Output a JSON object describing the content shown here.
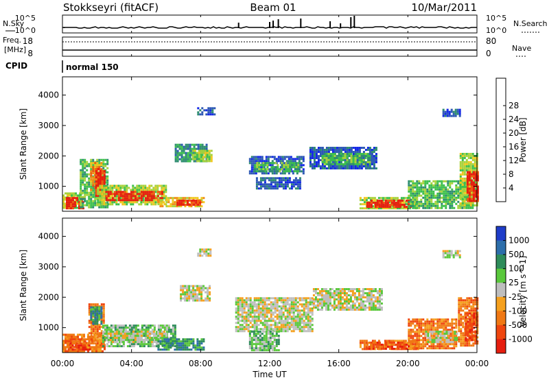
{
  "header": {
    "station": "Stokkseyri (fitACF)",
    "beam": "Beam 01",
    "date": "10/Mar/2011"
  },
  "noise_panel": {
    "left_label": "N.Sky",
    "right_label": "N.Search",
    "left_ticks": [
      "10^5",
      "10^0"
    ],
    "right_ticks": [
      "10^5",
      "10^0"
    ]
  },
  "freq_panel": {
    "left_label_1": "Freq.",
    "left_label_2": "[MHz]",
    "right_label": "Nave",
    "left_ticks": [
      "18",
      "8"
    ],
    "right_ticks": [
      "80",
      "0"
    ]
  },
  "cpid": {
    "label": "CPID",
    "mode": "normal 150"
  },
  "axes": {
    "ylabel": "Slant Range [km]",
    "xlabel": "Time UT",
    "yticks": [
      "1000",
      "2000",
      "3000",
      "4000"
    ],
    "xticks": [
      "00:00",
      "04:00",
      "08:00",
      "12:00",
      "16:00",
      "20:00",
      "00:00"
    ]
  },
  "colorbars": {
    "power": {
      "label": "Power [dB]",
      "ticks": [
        "4",
        "8",
        "12",
        "16",
        "20",
        "24",
        "28"
      ],
      "colors": [
        "#1428e6",
        "#2d58b4",
        "#2e8c70",
        "#3cbf4c",
        "#a7d23c",
        "#f0c81e",
        "#f08c14",
        "#ef5a0f",
        "#e61e0f"
      ]
    },
    "velocity": {
      "label": "Velocity [m s^-1]",
      "ticks": [
        "1000",
        "500",
        "100",
        "25",
        "-25",
        "-100",
        "-500",
        "-1000"
      ],
      "colors": [
        "#1e3cc8",
        "#2d6eaa",
        "#2e8c5a",
        "#5ac83c",
        "#bebebe",
        "#f5a01e",
        "#f07814",
        "#ef460f",
        "#e61e0f"
      ]
    }
  },
  "chart_data": [
    {
      "type": "heatmap",
      "name": "power",
      "x_unit": "hours UT",
      "y_unit": "km",
      "xlim": [
        0,
        24
      ],
      "ylim": [
        180,
        4600
      ],
      "regions": [
        {
          "t0": 0.0,
          "t1": 1.1,
          "r0": 300,
          "r1": 800,
          "level": 4
        },
        {
          "t0": 0.2,
          "t1": 1.2,
          "r0": 300,
          "r1": 650,
          "level": 8
        },
        {
          "t0": 1.0,
          "t1": 2.6,
          "r0": 300,
          "r1": 1900,
          "level": 3
        },
        {
          "t0": 1.6,
          "t1": 2.2,
          "r0": 900,
          "r1": 1800,
          "level": 6
        },
        {
          "t0": 1.9,
          "t1": 2.4,
          "r0": 700,
          "r1": 1600,
          "level": 8
        },
        {
          "t0": 2.0,
          "t1": 6.0,
          "r0": 400,
          "r1": 1050,
          "level": 4
        },
        {
          "t0": 2.5,
          "t1": 5.8,
          "r0": 550,
          "r1": 850,
          "level": 8
        },
        {
          "t0": 5.5,
          "t1": 8.2,
          "r0": 350,
          "r1": 650,
          "level": 5
        },
        {
          "t0": 6.6,
          "t1": 8.0,
          "r0": 380,
          "r1": 560,
          "level": 8
        },
        {
          "t0": 6.5,
          "t1": 8.3,
          "r0": 1800,
          "r1": 2400,
          "level": 2
        },
        {
          "t0": 7.5,
          "t1": 8.6,
          "r0": 1850,
          "r1": 2200,
          "level": 4
        },
        {
          "t0": 7.8,
          "t1": 8.8,
          "r0": 3350,
          "r1": 3600,
          "level": 1
        },
        {
          "t0": 10.8,
          "t1": 13.9,
          "r0": 1400,
          "r1": 2000,
          "level": 1
        },
        {
          "t0": 11.1,
          "t1": 13.7,
          "r0": 1500,
          "r1": 1800,
          "level": 3
        },
        {
          "t0": 11.2,
          "t1": 13.8,
          "r0": 950,
          "r1": 1300,
          "level": 1
        },
        {
          "t0": 14.3,
          "t1": 18.2,
          "r0": 1600,
          "r1": 2300,
          "level": 1
        },
        {
          "t0": 15.0,
          "t1": 17.8,
          "r0": 1750,
          "r1": 2100,
          "level": 3
        },
        {
          "t0": 17.2,
          "t1": 20.5,
          "r0": 300,
          "r1": 650,
          "level": 4
        },
        {
          "t0": 17.6,
          "t1": 20.2,
          "r0": 320,
          "r1": 560,
          "level": 8
        },
        {
          "t0": 20.0,
          "t1": 23.8,
          "r0": 300,
          "r1": 1200,
          "level": 3
        },
        {
          "t0": 22.0,
          "t1": 23.0,
          "r0": 3300,
          "r1": 3550,
          "level": 1
        },
        {
          "t0": 23.0,
          "t1": 24.0,
          "r0": 400,
          "r1": 2100,
          "level": 4
        },
        {
          "t0": 23.4,
          "t1": 24.0,
          "r0": 500,
          "r1": 1500,
          "level": 8
        }
      ]
    },
    {
      "type": "heatmap",
      "name": "velocity",
      "x_unit": "hours UT",
      "y_unit": "km",
      "xlim": [
        0,
        24
      ],
      "ylim": [
        180,
        4600
      ],
      "regions": [
        {
          "t0": 0.0,
          "t1": 2.5,
          "r0": 250,
          "r1": 800,
          "level": 6
        },
        {
          "t0": 0.3,
          "t1": 1.5,
          "r0": 300,
          "r1": 650,
          "level": 7
        },
        {
          "t0": 1.5,
          "t1": 2.4,
          "r0": 500,
          "r1": 1800,
          "level": 6
        },
        {
          "t0": 1.6,
          "t1": 2.2,
          "r0": 1100,
          "r1": 1700,
          "level": 2
        },
        {
          "t0": 2.3,
          "t1": 6.5,
          "r0": 400,
          "r1": 1100,
          "level": 3
        },
        {
          "t0": 2.5,
          "t1": 6.0,
          "r0": 550,
          "r1": 900,
          "level": 4
        },
        {
          "t0": 5.5,
          "t1": 8.2,
          "r0": 300,
          "r1": 650,
          "level": 2
        },
        {
          "t0": 6.8,
          "t1": 8.5,
          "r0": 1900,
          "r1": 2400,
          "level": 4
        },
        {
          "t0": 7.8,
          "t1": 8.6,
          "r0": 3350,
          "r1": 3600,
          "level": 4
        },
        {
          "t0": 10.0,
          "t1": 14.5,
          "r0": 900,
          "r1": 2000,
          "level": 4
        },
        {
          "t0": 10.8,
          "t1": 12.5,
          "r0": 250,
          "r1": 900,
          "level": 3
        },
        {
          "t0": 14.5,
          "t1": 18.5,
          "r0": 1600,
          "r1": 2300,
          "level": 4
        },
        {
          "t0": 17.2,
          "t1": 20.6,
          "r0": 280,
          "r1": 600,
          "level": 6
        },
        {
          "t0": 17.6,
          "t1": 20.2,
          "r0": 320,
          "r1": 540,
          "level": 7
        },
        {
          "t0": 20.0,
          "t1": 22.8,
          "r0": 300,
          "r1": 1300,
          "level": 6
        },
        {
          "t0": 21.0,
          "t1": 22.8,
          "r0": 500,
          "r1": 900,
          "level": 4
        },
        {
          "t0": 22.0,
          "t1": 23.0,
          "r0": 3300,
          "r1": 3550,
          "level": 4
        },
        {
          "t0": 22.9,
          "t1": 24.0,
          "r0": 400,
          "r1": 2000,
          "level": 6
        },
        {
          "t0": 23.3,
          "t1": 24.0,
          "r0": 600,
          "r1": 1500,
          "level": 7
        }
      ]
    }
  ]
}
